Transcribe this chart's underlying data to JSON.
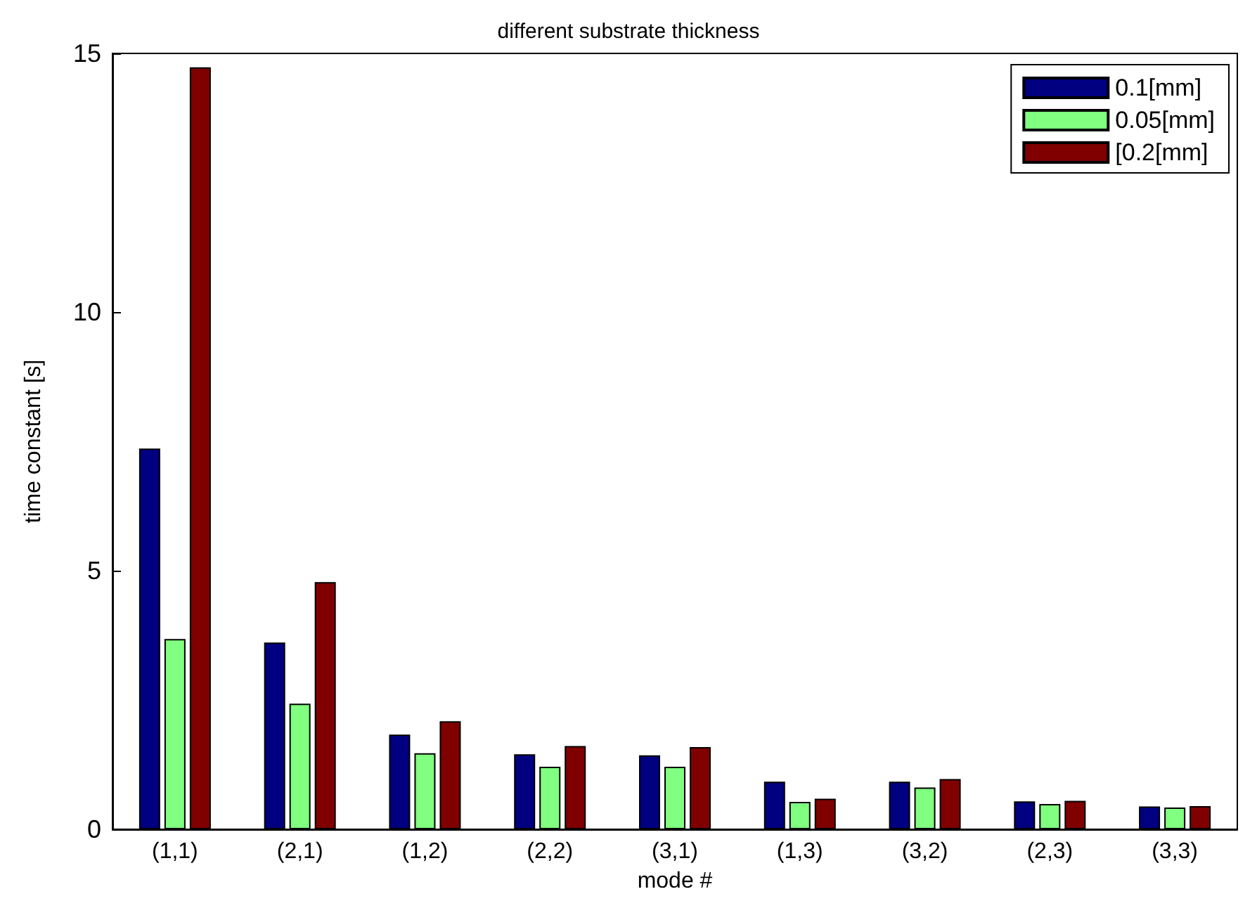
{
  "chart_data": {
    "type": "bar",
    "title": "different substrate thickness",
    "xlabel": "mode #",
    "ylabel": "time constant [s]",
    "categories": [
      "(1,1)",
      "(2,1)",
      "(1,2)",
      "(2,2)",
      "(3,1)",
      "(1,3)",
      "(3,2)",
      "(2,3)",
      "(3,3)"
    ],
    "series": [
      {
        "name": "0.1[mm]",
        "color": "#000080",
        "values": [
          7.36,
          3.61,
          1.83,
          1.45,
          1.43,
          0.92,
          0.92,
          0.54,
          0.44
        ]
      },
      {
        "name": "0.05[mm]",
        "color": "#80ff80",
        "values": [
          3.68,
          2.43,
          1.47,
          1.21,
          1.21,
          0.53,
          0.81,
          0.49,
          0.42
        ]
      },
      {
        "name": "[0.2[mm]",
        "color": "#800000",
        "values": [
          14.73,
          4.78,
          2.09,
          1.61,
          1.59,
          0.59,
          0.97,
          0.55,
          0.45
        ]
      }
    ],
    "ylim": [
      0,
      15
    ],
    "yticks": [
      0,
      5,
      10,
      15
    ],
    "grid": false,
    "legend": "top right"
  }
}
